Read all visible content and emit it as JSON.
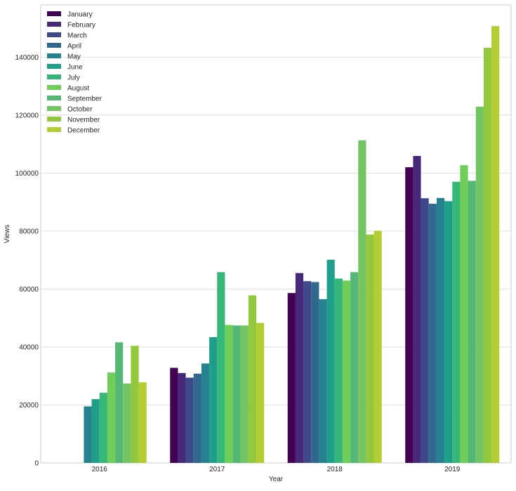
{
  "chart_data": {
    "type": "bar",
    "title": "",
    "xlabel": "Year",
    "ylabel": "Views",
    "categories": [
      "2016",
      "2017",
      "2018",
      "2019"
    ],
    "ylim": [
      0,
      158000
    ],
    "yticks": [
      0,
      20000,
      40000,
      60000,
      80000,
      100000,
      120000,
      140000
    ],
    "grid": true,
    "grid_axis": "y",
    "legend_position": "top-left",
    "series": [
      {
        "name": "January",
        "color": "#440154",
        "values": [
          null,
          32800,
          58600,
          102000
        ]
      },
      {
        "name": "February",
        "color": "#482878",
        "values": [
          null,
          31000,
          65500,
          105900
        ]
      },
      {
        "name": "March",
        "color": "#3e4989",
        "values": [
          null,
          29400,
          62700,
          91300
        ]
      },
      {
        "name": "April",
        "color": "#31688e",
        "values": [
          null,
          30800,
          62400,
          89400
        ]
      },
      {
        "name": "May",
        "color": "#26828e",
        "values": [
          19500,
          34300,
          56500,
          91400
        ]
      },
      {
        "name": "June",
        "color": "#1f9e89",
        "values": [
          22000,
          43400,
          70100,
          90300
        ]
      },
      {
        "name": "July",
        "color": "#35b779",
        "values": [
          24200,
          65800,
          63600,
          97000
        ]
      },
      {
        "name": "August",
        "color": "#6ece58",
        "values": [
          31200,
          47600,
          62900,
          102700
        ]
      },
      {
        "name": "September",
        "color": "#54b775",
        "values": [
          41600,
          47400,
          65800,
          97300
        ]
      },
      {
        "name": "October",
        "color": "#72c562",
        "values": [
          27400,
          47400,
          111300,
          122900
        ]
      },
      {
        "name": "November",
        "color": "#93c83e",
        "values": [
          40400,
          57800,
          78800,
          143200
        ]
      },
      {
        "name": "December",
        "color": "#b5cc33",
        "values": [
          27800,
          48300,
          80100,
          150700
        ]
      }
    ]
  }
}
